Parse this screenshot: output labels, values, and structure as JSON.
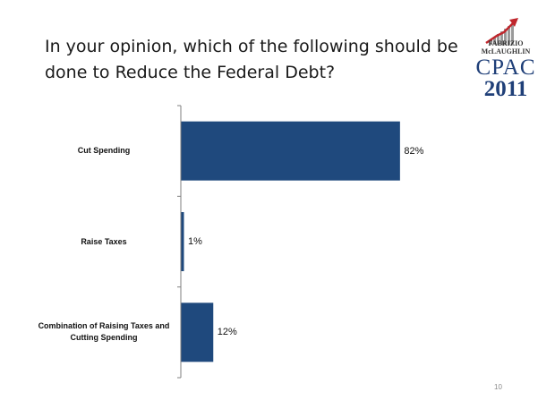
{
  "slide": {
    "title": "In your opinion, which of the following should be done to Reduce the Federal Debt?",
    "page_number": "10"
  },
  "logo": {
    "firm_line1": "FABRIZIO",
    "firm_line2": "McLAUGHLIN",
    "event": "CPAC",
    "year": "2011"
  },
  "colors": {
    "bar": "#1f497d",
    "axis": "#7f7f7f"
  },
  "chart_data": {
    "type": "bar",
    "orientation": "horizontal",
    "title": "",
    "xlabel": "",
    "ylabel": "",
    "categories": [
      "Cut Spending",
      "Raise Taxes",
      "Combination of Raising Taxes and Cutting Spending"
    ],
    "values": [
      82,
      1,
      12
    ],
    "value_labels": [
      "82%",
      "1%",
      "12%"
    ],
    "xlim": [
      0,
      100
    ],
    "grid": false,
    "legend": "none"
  }
}
